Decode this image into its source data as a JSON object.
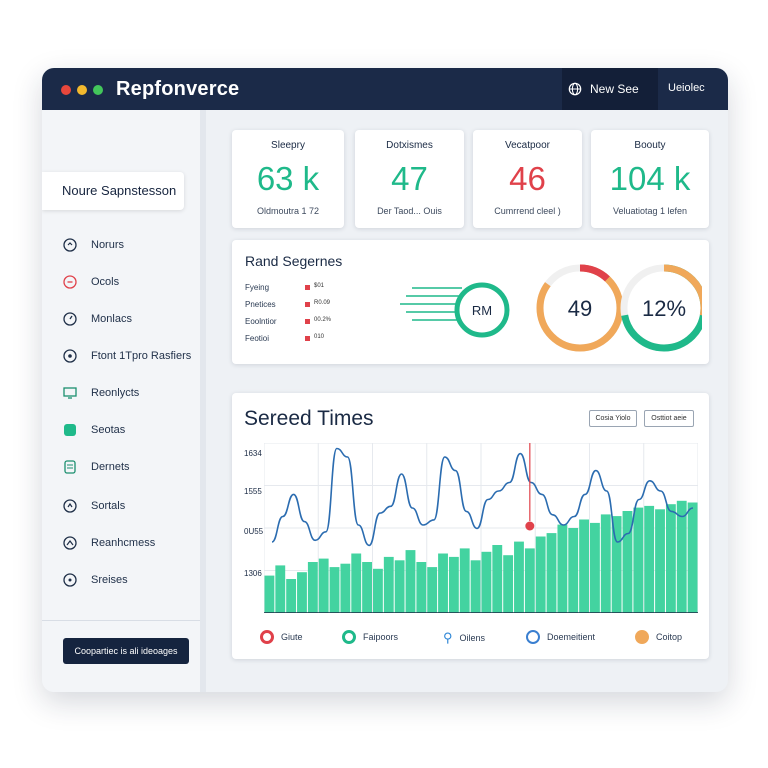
{
  "app": {
    "title": "Repfonverce",
    "new_button": "New See",
    "top_link": "Ueiolec"
  },
  "sidebar": {
    "header": "Noure Sapnstesson",
    "items": [
      {
        "label": "Norurs",
        "icon": "circle-icon"
      },
      {
        "label": "Ocols",
        "icon": "alert-circle-icon"
      },
      {
        "label": "Monlacs",
        "icon": "target-icon"
      },
      {
        "label": "Ftont 1Tpro Rasfiers",
        "icon": "pin-icon"
      },
      {
        "label": "Reonlycts",
        "icon": "monitor-icon"
      },
      {
        "label": "Seotas",
        "icon": "square-icon"
      },
      {
        "label": "Dernets",
        "icon": "document-icon"
      },
      {
        "label": "Sortals",
        "icon": "settings-circle-icon"
      },
      {
        "label": "Reanhcmess",
        "icon": "chart-circle-icon"
      },
      {
        "label": "Sreises",
        "icon": "dot-circle-icon"
      }
    ],
    "button": "Coopartiec is ali ideoages"
  },
  "stats": [
    {
      "title": "Sleepry",
      "value": "63 k",
      "sub": "Oldmoutra 1     72",
      "color": "#1fb98a"
    },
    {
      "title": "Dotxismes",
      "value": "47",
      "sub": "Der Taod... Ouis",
      "color": "#1fb98a"
    },
    {
      "title": "Vecatpoor",
      "value": "46",
      "sub": "Cumrrend cleel )",
      "color": "#e0414a"
    },
    {
      "title": "Boouty",
      "value": "104 k",
      "sub": "Veluatiotag 1 lefen",
      "color": "#1fb98a"
    }
  ],
  "segments": {
    "title": "Rand Segernes",
    "rows": [
      {
        "label": "Fyeing",
        "value": "$01"
      },
      {
        "label": "Pnetices",
        "value": "R0.09"
      },
      {
        "label": "Eoolntior",
        "value": "00.2%"
      },
      {
        "label": "Feotioi",
        "value": "010"
      }
    ],
    "speed_label": "RM",
    "gauges": [
      {
        "value_text": "49",
        "fraction": 0.85,
        "color": "#f0a85a",
        "accent": "#e0414a",
        "accent_fraction": 0.12
      },
      {
        "value_text": "12%",
        "fraction": 0.72,
        "color": "#1fb98a",
        "accent": "#f0a85a",
        "accent_fraction": 0.28
      }
    ]
  },
  "chart": {
    "title": "Sereed Times",
    "buttons": [
      "Cosia Yiolo",
      "Osttiot aeie"
    ],
    "legend": [
      {
        "label": "Giute",
        "color": "#e0414a"
      },
      {
        "label": "Faipoors",
        "color": "#1fb98a"
      },
      {
        "label": "Oilens",
        "color": "#2d86d6"
      },
      {
        "label": "Doemeitient",
        "color": "#3a7fd0"
      },
      {
        "label": "Coitop",
        "color": "#f0a85a"
      }
    ]
  },
  "chart_data": {
    "type": "line",
    "y_tick_labels": [
      "1634",
      "1555",
      "0U55",
      "1306"
    ],
    "series": [
      {
        "values": [
          30,
          45,
          58,
          42,
          31,
          36,
          85,
          80,
          40,
          28,
          47,
          51,
          70,
          50,
          40,
          43,
          80,
          72,
          48,
          38,
          55,
          60,
          65,
          82,
          65,
          58,
          46,
          40,
          45,
          58,
          72,
          60,
          30,
          35,
          55,
          66,
          60,
          48,
          45,
          50
        ]
      },
      {
        "values": [
          22,
          28,
          20,
          24,
          30,
          32,
          27,
          29,
          35,
          30,
          26,
          33,
          31,
          37,
          30,
          27,
          35,
          33,
          38,
          31,
          36,
          40,
          34,
          42,
          38,
          45,
          47,
          52,
          50,
          55,
          53,
          58,
          57,
          60,
          62,
          63,
          61,
          64,
          66,
          65
        ]
      }
    ],
    "marker_index": 24
  }
}
